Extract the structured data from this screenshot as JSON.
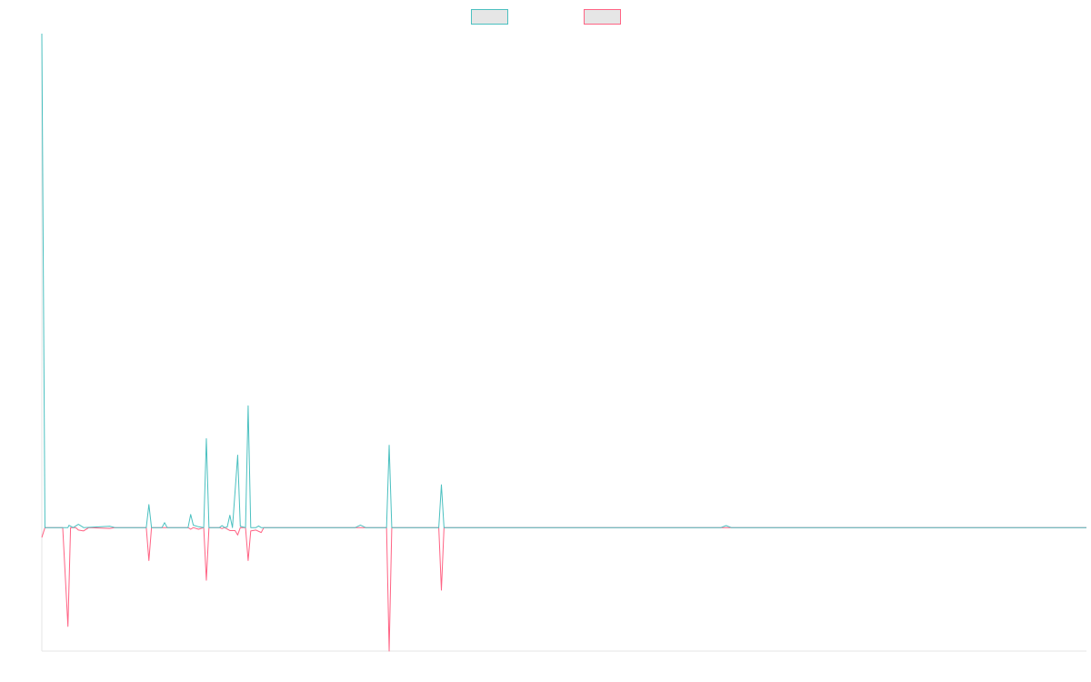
{
  "chart_data": {
    "type": "line",
    "title": "",
    "xlabel": "",
    "ylabel": "",
    "grid": false,
    "legend": "top-center",
    "x_range": [
      0,
      200
    ],
    "ylim": [
      -75,
      300
    ],
    "series": [
      {
        "color": "#4bc0c0",
        "fill": "#e6e6e6",
        "points": [
          [
            0,
            300
          ],
          [
            0.6,
            0
          ],
          [
            5,
            0
          ],
          [
            5.2,
            1.4
          ],
          [
            6,
            0
          ],
          [
            7,
            2
          ],
          [
            8,
            0
          ],
          [
            13,
            0.8
          ],
          [
            14,
            0
          ],
          [
            20,
            0
          ],
          [
            20.5,
            14
          ],
          [
            21,
            0
          ],
          [
            23,
            0
          ],
          [
            23.5,
            3
          ],
          [
            24,
            0
          ],
          [
            28,
            0
          ],
          [
            28.5,
            8
          ],
          [
            29,
            1.5
          ],
          [
            30,
            0.5
          ],
          [
            31,
            0
          ],
          [
            31.5,
            54
          ],
          [
            32,
            0
          ],
          [
            34,
            0
          ],
          [
            34.5,
            1.2
          ],
          [
            35,
            0
          ],
          [
            35.5,
            0.4
          ],
          [
            36,
            7.5
          ],
          [
            36.5,
            0
          ],
          [
            37.5,
            44
          ],
          [
            38,
            0.8
          ],
          [
            39,
            0
          ],
          [
            39.5,
            74
          ],
          [
            40,
            0
          ],
          [
            41,
            0
          ],
          [
            41.5,
            1
          ],
          [
            42,
            0
          ],
          [
            49,
            0
          ],
          [
            52,
            0
          ],
          [
            60,
            0
          ],
          [
            61,
            1.5
          ],
          [
            62,
            0
          ],
          [
            66,
            0
          ],
          [
            66.5,
            50
          ],
          [
            67,
            0
          ],
          [
            76,
            0
          ],
          [
            76.5,
            26
          ],
          [
            77,
            0
          ],
          [
            130,
            0
          ],
          [
            131,
            1.2
          ],
          [
            132,
            0
          ],
          [
            200,
            0
          ]
        ]
      },
      {
        "color": "#ff6384",
        "fill": "#e6e6e6",
        "points": [
          [
            0,
            -6
          ],
          [
            0.6,
            0
          ],
          [
            4,
            0
          ],
          [
            5,
            -60
          ],
          [
            5.5,
            0
          ],
          [
            6.5,
            0
          ],
          [
            7,
            -1.5
          ],
          [
            8,
            -2
          ],
          [
            9,
            0
          ],
          [
            13,
            -0.5
          ],
          [
            14,
            0
          ],
          [
            20,
            0
          ],
          [
            20.5,
            -20
          ],
          [
            21,
            0
          ],
          [
            28,
            0
          ],
          [
            28.5,
            -1
          ],
          [
            29,
            0
          ],
          [
            30,
            -1
          ],
          [
            31,
            0
          ],
          [
            31.5,
            -32
          ],
          [
            32,
            0
          ],
          [
            34,
            0
          ],
          [
            34.5,
            -0.6
          ],
          [
            35,
            0
          ],
          [
            36,
            -1.8
          ],
          [
            37,
            -1.8
          ],
          [
            37.5,
            -4.5
          ],
          [
            38,
            0
          ],
          [
            39,
            0
          ],
          [
            39.5,
            -20
          ],
          [
            40,
            -2
          ],
          [
            41,
            -1.5
          ],
          [
            42,
            -3
          ],
          [
            42.5,
            0
          ],
          [
            49,
            0
          ],
          [
            52,
            0
          ],
          [
            60,
            0
          ],
          [
            66,
            0
          ],
          [
            66.5,
            -75
          ],
          [
            67,
            0
          ],
          [
            76,
            0
          ],
          [
            76.5,
            -38
          ],
          [
            77,
            0
          ],
          [
            200,
            0
          ]
        ]
      }
    ]
  }
}
